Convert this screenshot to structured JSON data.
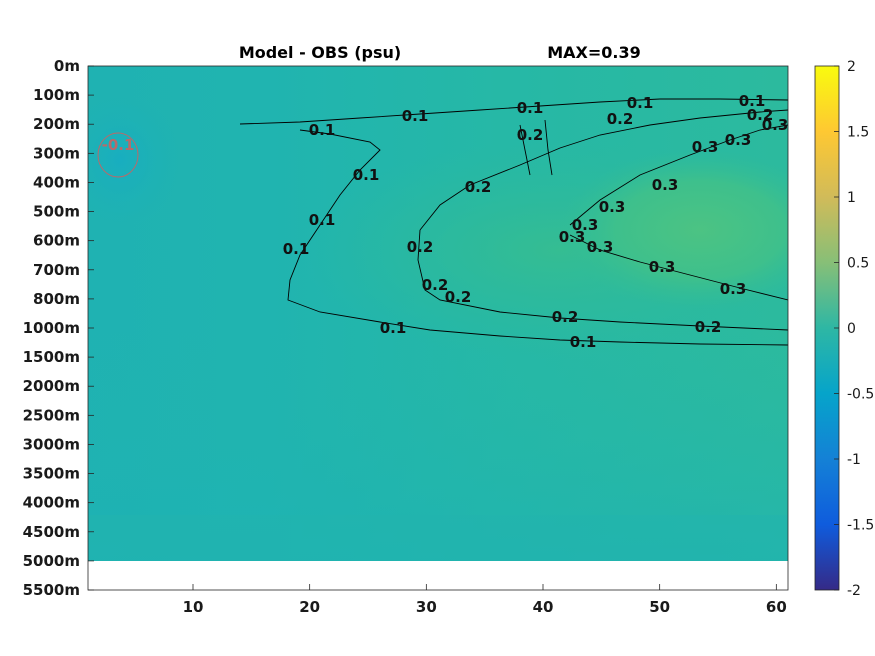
{
  "chart_data": {
    "type": "heatmap",
    "title": "Model - OBS (psu)",
    "annotation": "MAX=0.39",
    "x_ticks": [
      "10",
      "20",
      "30",
      "40",
      "50",
      "60"
    ],
    "x_tick_values": [
      10,
      20,
      30,
      40,
      50,
      60
    ],
    "xlim": [
      1,
      61
    ],
    "y_tick_labels": [
      "0m",
      "100m",
      "200m",
      "300m",
      "400m",
      "500m",
      "600m",
      "700m",
      "800m",
      "1000m",
      "1500m",
      "2000m",
      "2500m",
      "3000m",
      "3500m",
      "4000m",
      "4500m",
      "5000m",
      "5500m"
    ],
    "colorbar": {
      "colormap": "parula",
      "range": [
        -2,
        2
      ],
      "ticks": [
        "2",
        "1.5",
        "1",
        "0.5",
        "0",
        "-0.5",
        "-1",
        "-1.5",
        "-2"
      ],
      "tick_values": [
        2,
        1.5,
        1,
        0.5,
        0,
        -0.5,
        -1,
        -1.5,
        -2
      ]
    },
    "contour_labels": [
      "0.1",
      "0.2",
      "0.3",
      "-0.1"
    ],
    "max_value": 0.39
  }
}
